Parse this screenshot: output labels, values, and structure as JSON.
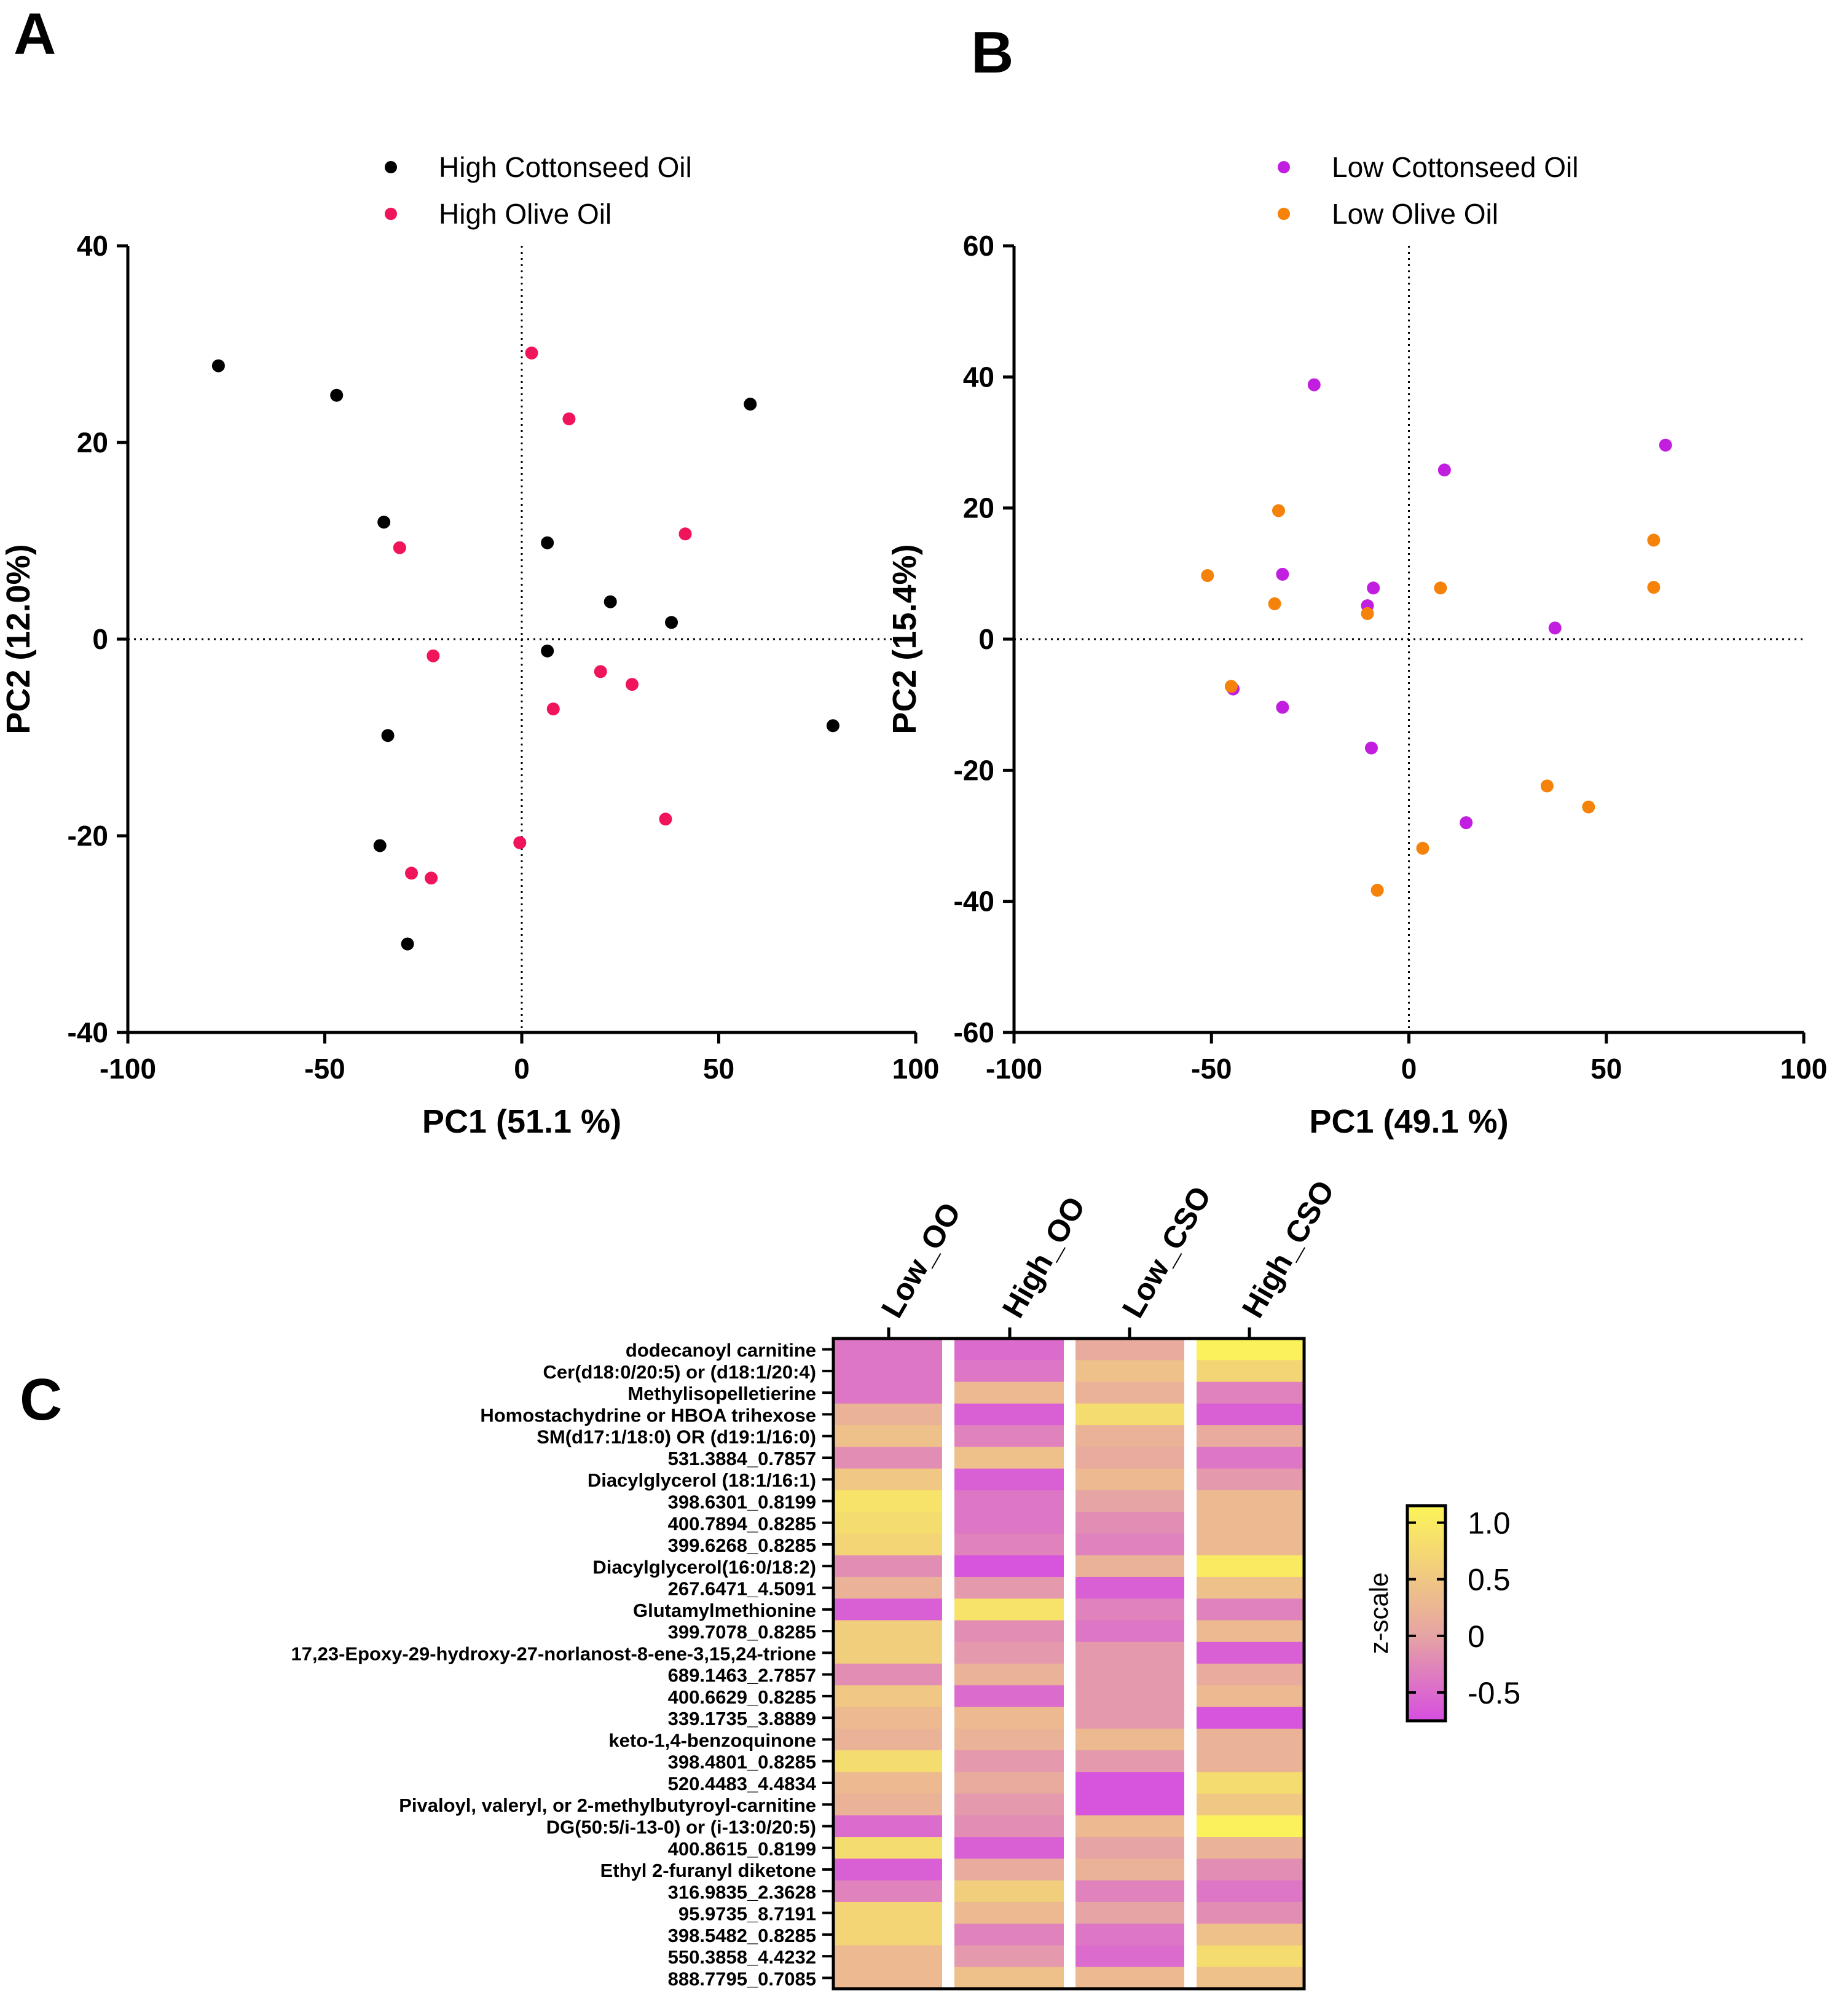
{
  "panel_labels": {
    "a": "A",
    "b": "B",
    "c": "C"
  },
  "colorbar": {
    "label": "z-scale",
    "ticks": [
      "1.0",
      "0.5",
      "0",
      "-0.5"
    ],
    "tick_values": [
      1.0,
      0.5,
      0,
      -0.5
    ],
    "range": [
      -0.75,
      1.15
    ],
    "low_color": "#d64ee0",
    "mid_color": "#e6a4a4",
    "high_color": "#fcf558"
  },
  "chart_data": [
    {
      "type": "scatter",
      "panel": "A",
      "xlabel": "PC1 (51.1 %)",
      "ylabel": "PC2 (12.0%)",
      "xlim": [
        -100,
        100
      ],
      "ylim": [
        -40,
        40
      ],
      "xticks": [
        -100,
        -50,
        0,
        50,
        100
      ],
      "yticks": [
        -40,
        -20,
        0,
        20,
        40
      ],
      "xtick_labels": [
        "-100",
        "-50",
        "0",
        "50",
        "100"
      ],
      "ytick_labels": [
        "-40",
        "-20",
        "0",
        "20",
        "40"
      ],
      "legend_position": "top",
      "series": [
        {
          "name": "High Cottonseed Oil",
          "color": "#000000",
          "points": [
            [
              -77,
              27.8
            ],
            [
              -47,
              24.8
            ],
            [
              -35,
              11.9
            ],
            [
              -34,
              -9.8
            ],
            [
              -36,
              -21
            ],
            [
              -29,
              -31
            ],
            [
              6.5,
              9.8
            ],
            [
              22.5,
              3.8
            ],
            [
              38,
              1.7
            ],
            [
              6.5,
              -1.2
            ],
            [
              58,
              23.9
            ],
            [
              79,
              -8.8
            ]
          ]
        },
        {
          "name": "High Olive Oil",
          "color": "#f0145a",
          "points": [
            [
              2.5,
              29.1
            ],
            [
              12,
              22.4
            ],
            [
              41.5,
              10.7
            ],
            [
              -31,
              9.3
            ],
            [
              -22.5,
              -1.7
            ],
            [
              20,
              -3.3
            ],
            [
              28,
              -4.6
            ],
            [
              8,
              -7.1
            ],
            [
              36.5,
              -18.3
            ],
            [
              -0.5,
              -20.7
            ],
            [
              -28,
              -23.8
            ],
            [
              -23,
              -24.3
            ]
          ]
        }
      ]
    },
    {
      "type": "scatter",
      "panel": "B",
      "xlabel": "PC1 (49.1 %)",
      "ylabel": "PC2 (15.4%)",
      "xlim": [
        -100,
        100
      ],
      "ylim": [
        -60,
        60
      ],
      "xticks": [
        -100,
        -50,
        0,
        50,
        100
      ],
      "yticks": [
        -60,
        -40,
        -20,
        0,
        20,
        40,
        60
      ],
      "xtick_labels": [
        "-100",
        "-50",
        "0",
        "50",
        "100"
      ],
      "ytick_labels": [
        "-60",
        "-40",
        "-20",
        "0",
        "20",
        "40",
        "60"
      ],
      "legend_position": "top",
      "series": [
        {
          "name": "Low Cottonseed Oil",
          "color": "#c21ee0",
          "points": [
            [
              -24,
              38.8
            ],
            [
              9,
              25.8
            ],
            [
              65,
              29.6
            ],
            [
              -32,
              9.9
            ],
            [
              -9,
              7.8
            ],
            [
              -10.5,
              5.1
            ],
            [
              37,
              1.7
            ],
            [
              -44.5,
              -7.6
            ],
            [
              -32,
              -10.4
            ],
            [
              -9.5,
              -16.6
            ],
            [
              14.5,
              -28
            ]
          ]
        },
        {
          "name": "Low Olive Oil",
          "color": "#f5820a",
          "points": [
            [
              -51,
              9.7
            ],
            [
              -33,
              19.6
            ],
            [
              -34,
              5.4
            ],
            [
              -10.5,
              3.9
            ],
            [
              8,
              7.8
            ],
            [
              62,
              15.1
            ],
            [
              62,
              7.9
            ],
            [
              -45,
              -7.2
            ],
            [
              35,
              -22.4
            ],
            [
              45.5,
              -25.6
            ],
            [
              3.5,
              -31.9
            ],
            [
              -8,
              -38.3
            ]
          ]
        }
      ]
    },
    {
      "type": "heatmap",
      "panel": "C",
      "columns": [
        "Low_OO",
        "High_OO",
        "Low_CSO",
        "High_CSO"
      ],
      "rows": [
        {
          "label": "dodecanoyl carnitine",
          "values": [
            -0.4,
            -0.5,
            0.1,
            1.1
          ]
        },
        {
          "label": "Cer(d18:0/20:5) or (d18:1/20:4)",
          "values": [
            -0.4,
            -0.4,
            0.4,
            0.7
          ]
        },
        {
          "label": "Methylisopelletierine",
          "values": [
            -0.4,
            0.3,
            0.2,
            -0.3
          ]
        },
        {
          "label": "Homostachydrine or HBOA trihexose",
          "values": [
            0.2,
            -0.6,
            0.8,
            -0.6
          ]
        },
        {
          "label": "SM(d17:1/18:0) OR (d19:1/16:0)",
          "values": [
            0.4,
            -0.3,
            0.2,
            0.1
          ]
        },
        {
          "label": "531.3884_0.7857",
          "values": [
            -0.2,
            0.4,
            0.1,
            -0.4
          ]
        },
        {
          "label": "Diacylglycerol (18:1/16:1)",
          "values": [
            0.5,
            -0.6,
            0.3,
            -0.1
          ]
        },
        {
          "label": "398.6301_0.8199",
          "values": [
            0.9,
            -0.4,
            0.0,
            0.3
          ]
        },
        {
          "label": "400.7894_0.8285",
          "values": [
            0.8,
            -0.4,
            -0.2,
            0.3
          ]
        },
        {
          "label": "399.6268_0.8285",
          "values": [
            0.7,
            -0.3,
            -0.3,
            0.3
          ]
        },
        {
          "label": "Diacylglycerol(16:0/18:2)",
          "values": [
            -0.2,
            -0.7,
            0.2,
            1.0
          ]
        },
        {
          "label": "267.6471_4.5091",
          "values": [
            0.2,
            -0.1,
            -0.6,
            0.4
          ]
        },
        {
          "label": "Glutamylmethionine",
          "values": [
            -0.6,
            0.9,
            -0.3,
            -0.3
          ]
        },
        {
          "label": "399.7078_0.8285",
          "values": [
            0.6,
            -0.2,
            -0.4,
            0.3
          ]
        },
        {
          "label": "17,23-Epoxy-29-hydroxy-27-norlanost-8-ene-3,15,24-trione",
          "values": [
            0.6,
            -0.1,
            -0.1,
            -0.6
          ]
        },
        {
          "label": "689.1463_2.7857",
          "values": [
            -0.2,
            0.2,
            -0.1,
            0.1
          ]
        },
        {
          "label": "400.6629_0.8285",
          "values": [
            0.5,
            -0.5,
            -0.1,
            0.3
          ]
        },
        {
          "label": "339.1735_3.8889",
          "values": [
            0.3,
            0.3,
            -0.1,
            -0.7
          ]
        },
        {
          "label": "keto-1,4-benzoquinone",
          "values": [
            0.2,
            0.2,
            0.3,
            0.2
          ]
        },
        {
          "label": "398.4801_0.8285",
          "values": [
            0.8,
            -0.1,
            -0.1,
            0.2
          ]
        },
        {
          "label": "520.4483_4.4834",
          "values": [
            0.3,
            0.1,
            -0.7,
            0.8
          ]
        },
        {
          "label": "Pivaloyl, valeryl, or 2-methylbutyroyl-carnitine",
          "values": [
            0.2,
            -0.1,
            -0.7,
            0.5
          ]
        },
        {
          "label": "DG(50:5/i-13-0) or (i-13:0/20:5)",
          "values": [
            -0.5,
            -0.2,
            0.3,
            1.1
          ]
        },
        {
          "label": "400.8615_0.8199",
          "values": [
            0.8,
            -0.6,
            0.0,
            0.2
          ]
        },
        {
          "label": "Ethyl 2-furanyl diketone",
          "values": [
            -0.6,
            0.1,
            0.2,
            -0.2
          ]
        },
        {
          "label": "316.9835_2.3628",
          "values": [
            -0.3,
            0.6,
            -0.3,
            -0.4
          ]
        },
        {
          "label": "95.9735_8.7191",
          "values": [
            0.7,
            0.3,
            0.0,
            -0.2
          ]
        },
        {
          "label": "398.5482_0.8285",
          "values": [
            0.7,
            -0.3,
            -0.4,
            0.4
          ]
        },
        {
          "label": "550.3858_4.4232",
          "values": [
            0.3,
            -0.1,
            -0.5,
            0.8
          ]
        },
        {
          "label": "888.7795_0.7085",
          "values": [
            0.3,
            0.4,
            0.3,
            0.4
          ]
        }
      ]
    }
  ]
}
